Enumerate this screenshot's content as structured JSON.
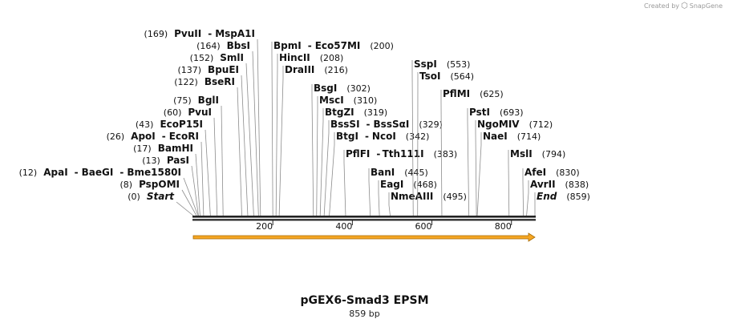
{
  "brand": {
    "prefix": "Created by",
    "logo_icon": "snapgene-logo-icon",
    "name": "SnapGene"
  },
  "sequence": {
    "name": "pGEX6-Smad3 EPSM",
    "length_label": "859 bp",
    "length": 859
  },
  "ruler": {
    "ticks": [
      200,
      400,
      600,
      800
    ]
  },
  "feature": {
    "type": "arrow",
    "direction": "forward",
    "start": 0,
    "end": 859,
    "color": "#f5a623"
  },
  "chart_data": {
    "type": "restriction-map",
    "title": "pGEX6-Smad3 EPSM",
    "subtitle": "859 bp",
    "sites": [
      {
        "name": "PvuII",
        "pos": 169,
        "partner": "MspA1I"
      },
      {
        "name": "BbsI",
        "pos": 164
      },
      {
        "name": "SmlI",
        "pos": 152
      },
      {
        "name": "BpuEI",
        "pos": 137
      },
      {
        "name": "BseRI",
        "pos": 122
      },
      {
        "name": "BglI",
        "pos": 75
      },
      {
        "name": "PvuI",
        "pos": 60
      },
      {
        "name": "EcoP15I",
        "pos": 43
      },
      {
        "name": "ApoI",
        "pos": 26,
        "partner": "EcoRI"
      },
      {
        "name": "BamHI",
        "pos": 17
      },
      {
        "name": "PasI",
        "pos": 13
      },
      {
        "name": "ApaI",
        "pos": 12,
        "partner": "BaeGI",
        "partner2": "Bme1580I"
      },
      {
        "name": "PspOMI",
        "pos": 8
      },
      {
        "name": "Start",
        "pos": 0,
        "italic": true
      },
      {
        "name": "BpmI",
        "pos": 200,
        "partner": "Eco57MI"
      },
      {
        "name": "HincII",
        "pos": 208
      },
      {
        "name": "DraIII",
        "pos": 216
      },
      {
        "name": "BsgI",
        "pos": 302
      },
      {
        "name": "MscI",
        "pos": 310
      },
      {
        "name": "BtgZI",
        "pos": 319
      },
      {
        "name": "BssSI",
        "pos": 329,
        "partner": "BssSαI"
      },
      {
        "name": "BtgI",
        "pos": 342,
        "partner": "NcoI"
      },
      {
        "name": "PflFI",
        "pos": 383,
        "partner": "Tth111I"
      },
      {
        "name": "BanI",
        "pos": 445
      },
      {
        "name": "EagI",
        "pos": 468
      },
      {
        "name": "NmeAIII",
        "pos": 495
      },
      {
        "name": "SspI",
        "pos": 553
      },
      {
        "name": "TsoI",
        "pos": 564
      },
      {
        "name": "PflMI",
        "pos": 625
      },
      {
        "name": "PstI",
        "pos": 693
      },
      {
        "name": "NgoMIV",
        "pos": 712
      },
      {
        "name": "NaeI",
        "pos": 714
      },
      {
        "name": "MslI",
        "pos": 794
      },
      {
        "name": "AfeI",
        "pos": 830
      },
      {
        "name": "AvrII",
        "pos": 838
      },
      {
        "name": "End",
        "pos": 859,
        "italic": true
      }
    ]
  }
}
